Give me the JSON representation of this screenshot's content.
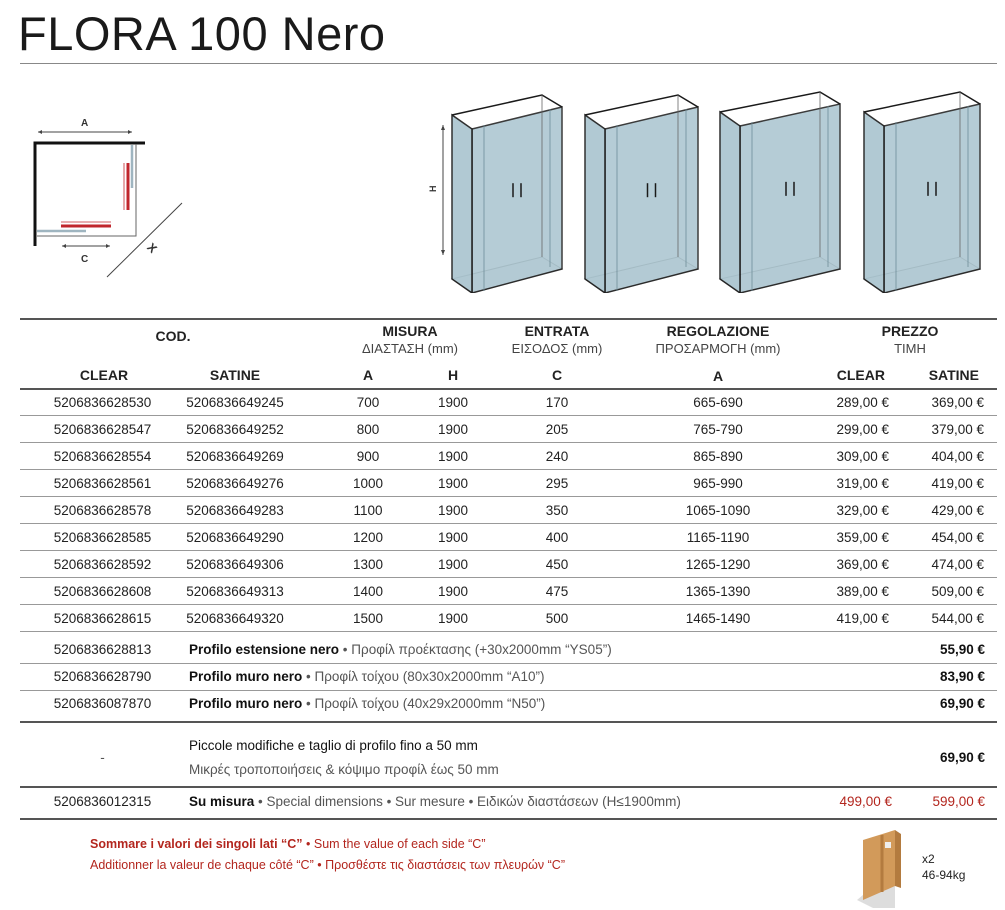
{
  "title": "FLORA 100 Nero",
  "diagram": {
    "label_a": "A",
    "label_c": "C",
    "label_x": "X",
    "label_h": "H"
  },
  "colors": {
    "glass": "#a9c4cf",
    "frame": "#1a1a1a",
    "accent_red": "#b3261e"
  },
  "table": {
    "header": {
      "cod": "COD.",
      "misura": "MISURA",
      "misura_sub": "ΔΙΑΣΤΑΣΗ (mm)",
      "entrata": "ENTRATA",
      "entrata_sub": "ΕΙΣΟΔΟΣ (mm)",
      "regolazione": "REGOLAZIONE",
      "regolazione_sub": "ΠΡΟΣΑΡΜΟΓΗ (mm)",
      "prezzo": "PREZZO",
      "prezzo_sub": "ΤΙΜΗ",
      "clear": "CLEAR",
      "satine": "SATINE",
      "a": "A",
      "h": "H",
      "c": "C",
      "reg_a": "A",
      "price_clear": "CLEAR",
      "price_satine": "SATINE"
    },
    "rows": [
      {
        "clear": "5206836628530",
        "satine": "5206836649245",
        "a": "700",
        "h": "1900",
        "c": "170",
        "reg": "665-690",
        "p_clear": "289,00 €",
        "p_satine": "369,00 €"
      },
      {
        "clear": "5206836628547",
        "satine": "5206836649252",
        "a": "800",
        "h": "1900",
        "c": "205",
        "reg": "765-790",
        "p_clear": "299,00 €",
        "p_satine": "379,00 €"
      },
      {
        "clear": "5206836628554",
        "satine": "5206836649269",
        "a": "900",
        "h": "1900",
        "c": "240",
        "reg": "865-890",
        "p_clear": "309,00 €",
        "p_satine": "404,00 €"
      },
      {
        "clear": "5206836628561",
        "satine": "5206836649276",
        "a": "1000",
        "h": "1900",
        "c": "295",
        "reg": "965-990",
        "p_clear": "319,00 €",
        "p_satine": "419,00 €"
      },
      {
        "clear": "5206836628578",
        "satine": "5206836649283",
        "a": "1100",
        "h": "1900",
        "c": "350",
        "reg": "1065-1090",
        "p_clear": "329,00 €",
        "p_satine": "429,00 €"
      },
      {
        "clear": "5206836628585",
        "satine": "5206836649290",
        "a": "1200",
        "h": "1900",
        "c": "400",
        "reg": "1165-1190",
        "p_clear": "359,00 €",
        "p_satine": "454,00 €"
      },
      {
        "clear": "5206836628592",
        "satine": "5206836649306",
        "a": "1300",
        "h": "1900",
        "c": "450",
        "reg": "1265-1290",
        "p_clear": "369,00 €",
        "p_satine": "474,00 €"
      },
      {
        "clear": "5206836628608",
        "satine": "5206836649313",
        "a": "1400",
        "h": "1900",
        "c": "475",
        "reg": "1365-1390",
        "p_clear": "389,00 €",
        "p_satine": "509,00 €"
      },
      {
        "clear": "5206836628615",
        "satine": "5206836649320",
        "a": "1500",
        "h": "1900",
        "c": "500",
        "reg": "1465-1490",
        "p_clear": "419,00 €",
        "p_satine": "544,00 €"
      }
    ],
    "accessories": [
      {
        "code": "5206836628813",
        "name": "Profilo estensione nero",
        "desc": " • Προφίλ προέκτασης (+30x2000mm “YS05”)",
        "price": "55,90 €"
      },
      {
        "code": "5206836628790",
        "name": "Profilo muro nero",
        "desc": " • Προφίλ τοίχου (80x30x2000mm “A10”)",
        "price": "83,90 €"
      },
      {
        "code": "5206836087870",
        "name": "Profilo muro nero",
        "desc": " • Προφίλ τοίχου (40x29x2000mm “N50”)",
        "price": "69,90 €"
      }
    ],
    "modifications": {
      "code": "-",
      "line1": "Piccole modifiche e taglio di profilo fino a 50 mm",
      "line2": "Μικρές τροποποιήσεις & κόψιμο προφίλ έως 50 mm",
      "price": "69,90 €"
    },
    "custom": {
      "code": "5206836012315",
      "name": "Su misura",
      "desc": " • Special dimensions • Sur mesure • Ειδικών διαστάσεων (H≤1900mm)",
      "p_clear": "499,00 €",
      "p_satine": "599,00 €"
    }
  },
  "notes": {
    "line1_bold": "Sommare i valori dei singoli lati “C”",
    "line1_rest": " • Sum the value of each side “C”",
    "line2": "Additionner la valeur de chaque côté “C” • Προσθέστε τις διαστάσεις των πλευρών “C”"
  },
  "package": {
    "quantity": "x2",
    "weight": "46-94kg",
    "icon": "package-box-icon"
  }
}
